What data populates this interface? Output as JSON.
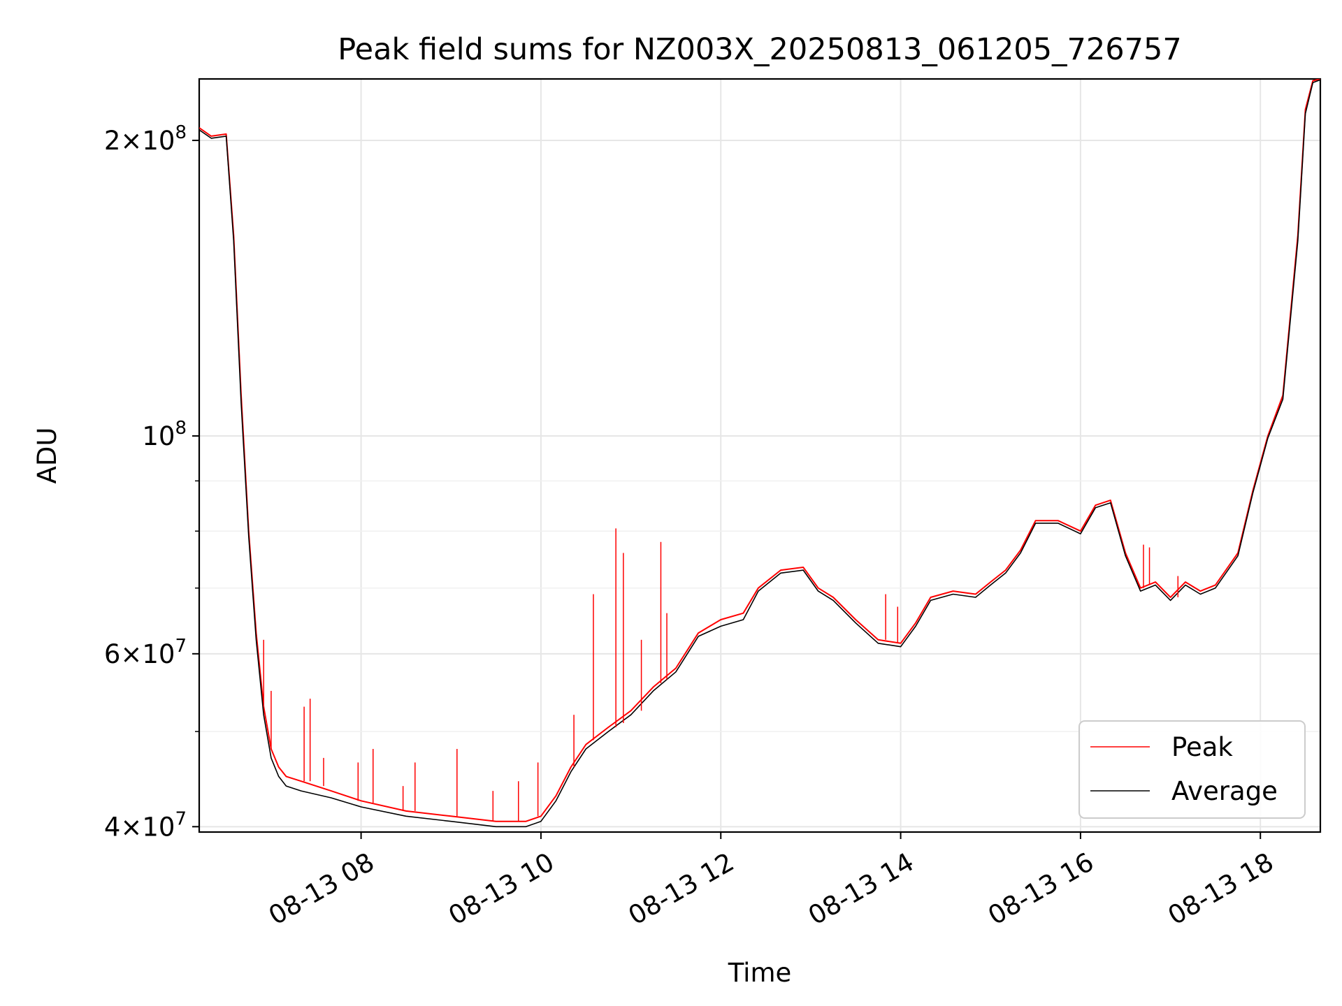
{
  "chart_data": {
    "type": "line",
    "title": "Peak field sums for NZ003X_20250813_061205_726757",
    "xlabel": "Time",
    "ylabel": "ADU",
    "yscale": "log",
    "grid": true,
    "legend_position": "lower-right",
    "xlim": [
      "2025-08-13 06:12",
      "2025-08-13 18:40"
    ],
    "ylim": [
      39500000,
      231000000
    ],
    "x_ticks": [
      {
        "value": "2025-08-13 08:00",
        "label": "08-13 08"
      },
      {
        "value": "2025-08-13 10:00",
        "label": "08-13 10"
      },
      {
        "value": "2025-08-13 12:00",
        "label": "08-13 12"
      },
      {
        "value": "2025-08-13 14:00",
        "label": "08-13 14"
      },
      {
        "value": "2025-08-13 16:00",
        "label": "08-13 16"
      },
      {
        "value": "2025-08-13 18:00",
        "label": "08-13 18"
      }
    ],
    "y_major_ticks": [
      {
        "value": 40000000,
        "base": "4",
        "exp": "7"
      },
      {
        "value": 60000000,
        "base": "6",
        "exp": "7"
      },
      {
        "value": 100000000,
        "base": "",
        "exp": "8"
      },
      {
        "value": 200000000,
        "base": "2",
        "exp": "8"
      }
    ],
    "y_minor_ticks": [
      50000000,
      70000000,
      80000000,
      90000000
    ],
    "series": [
      {
        "name": "Peak",
        "color": "#ff0000",
        "x": [
          "2025-08-13 06:12",
          "2025-08-13 06:20",
          "2025-08-13 06:30",
          "2025-08-13 06:35",
          "2025-08-13 06:40",
          "2025-08-13 06:45",
          "2025-08-13 06:50",
          "2025-08-13 06:55",
          "2025-08-13 07:00",
          "2025-08-13 07:05",
          "2025-08-13 07:10",
          "2025-08-13 07:20",
          "2025-08-13 07:40",
          "2025-08-13 08:00",
          "2025-08-13 08:30",
          "2025-08-13 09:00",
          "2025-08-13 09:30",
          "2025-08-13 09:50",
          "2025-08-13 10:00",
          "2025-08-13 10:10",
          "2025-08-13 10:20",
          "2025-08-13 10:30",
          "2025-08-13 10:45",
          "2025-08-13 11:00",
          "2025-08-13 11:15",
          "2025-08-13 11:30",
          "2025-08-13 11:45",
          "2025-08-13 12:00",
          "2025-08-13 12:15",
          "2025-08-13 12:25",
          "2025-08-13 12:40",
          "2025-08-13 12:55",
          "2025-08-13 13:05",
          "2025-08-13 13:15",
          "2025-08-13 13:30",
          "2025-08-13 13:45",
          "2025-08-13 14:00",
          "2025-08-13 14:10",
          "2025-08-13 14:20",
          "2025-08-13 14:35",
          "2025-08-13 14:50",
          "2025-08-13 15:00",
          "2025-08-13 15:10",
          "2025-08-13 15:20",
          "2025-08-13 15:30",
          "2025-08-13 15:45",
          "2025-08-13 16:00",
          "2025-08-13 16:10",
          "2025-08-13 16:20",
          "2025-08-13 16:30",
          "2025-08-13 16:40",
          "2025-08-13 16:50",
          "2025-08-13 17:00",
          "2025-08-13 17:10",
          "2025-08-13 17:20",
          "2025-08-13 17:30",
          "2025-08-13 17:45",
          "2025-08-13 17:55",
          "2025-08-13 18:05",
          "2025-08-13 18:15",
          "2025-08-13 18:25",
          "2025-08-13 18:30",
          "2025-08-13 18:35",
          "2025-08-13 18:40"
        ],
        "y": [
          206000000,
          202000000,
          203000000,
          160000000,
          110000000,
          80000000,
          63000000,
          53000000,
          48000000,
          46000000,
          45000000,
          44500000,
          43500000,
          42500000,
          41500000,
          41000000,
          40500000,
          40500000,
          41000000,
          43000000,
          46000000,
          48500000,
          50500000,
          52500000,
          55500000,
          58000000,
          63000000,
          65000000,
          66000000,
          70000000,
          73000000,
          73500000,
          70000000,
          68500000,
          65000000,
          62000000,
          61500000,
          64500000,
          68500000,
          69500000,
          69000000,
          71000000,
          73000000,
          76500000,
          82000000,
          82000000,
          80000000,
          85000000,
          86000000,
          76000000,
          70000000,
          71000000,
          68500000,
          71000000,
          69500000,
          70500000,
          76000000,
          88000000,
          100000000,
          110000000,
          160000000,
          215000000,
          230000000,
          231000000
        ]
      },
      {
        "name": "Average",
        "color": "#000000",
        "x": [
          "2025-08-13 06:12",
          "2025-08-13 06:20",
          "2025-08-13 06:30",
          "2025-08-13 06:35",
          "2025-08-13 06:40",
          "2025-08-13 06:45",
          "2025-08-13 06:50",
          "2025-08-13 06:55",
          "2025-08-13 07:00",
          "2025-08-13 07:05",
          "2025-08-13 07:10",
          "2025-08-13 07:20",
          "2025-08-13 07:40",
          "2025-08-13 08:00",
          "2025-08-13 08:30",
          "2025-08-13 09:00",
          "2025-08-13 09:30",
          "2025-08-13 09:50",
          "2025-08-13 10:00",
          "2025-08-13 10:10",
          "2025-08-13 10:20",
          "2025-08-13 10:30",
          "2025-08-13 10:45",
          "2025-08-13 11:00",
          "2025-08-13 11:15",
          "2025-08-13 11:30",
          "2025-08-13 11:45",
          "2025-08-13 12:00",
          "2025-08-13 12:15",
          "2025-08-13 12:25",
          "2025-08-13 12:40",
          "2025-08-13 12:55",
          "2025-08-13 13:05",
          "2025-08-13 13:15",
          "2025-08-13 13:30",
          "2025-08-13 13:45",
          "2025-08-13 14:00",
          "2025-08-13 14:10",
          "2025-08-13 14:20",
          "2025-08-13 14:35",
          "2025-08-13 14:50",
          "2025-08-13 15:00",
          "2025-08-13 15:10",
          "2025-08-13 15:20",
          "2025-08-13 15:30",
          "2025-08-13 15:45",
          "2025-08-13 16:00",
          "2025-08-13 16:10",
          "2025-08-13 16:20",
          "2025-08-13 16:30",
          "2025-08-13 16:40",
          "2025-08-13 16:50",
          "2025-08-13 17:00",
          "2025-08-13 17:10",
          "2025-08-13 17:20",
          "2025-08-13 17:30",
          "2025-08-13 17:45",
          "2025-08-13 17:55",
          "2025-08-13 18:05",
          "2025-08-13 18:15",
          "2025-08-13 18:25",
          "2025-08-13 18:30",
          "2025-08-13 18:35",
          "2025-08-13 18:40"
        ],
        "y": [
          205000000,
          201000000,
          202000000,
          158000000,
          108000000,
          79000000,
          62000000,
          52000000,
          47000000,
          45000000,
          44000000,
          43500000,
          42800000,
          41900000,
          41000000,
          40500000,
          40000000,
          40000000,
          40500000,
          42500000,
          45500000,
          48000000,
          50000000,
          52000000,
          55000000,
          57500000,
          62500000,
          64000000,
          65000000,
          69500000,
          72500000,
          73000000,
          69500000,
          68000000,
          64500000,
          61500000,
          61000000,
          64000000,
          68000000,
          69000000,
          68500000,
          70500000,
          72500000,
          76000000,
          81500000,
          81500000,
          79500000,
          84500000,
          85500000,
          75500000,
          69500000,
          70500000,
          68000000,
          70500000,
          69000000,
          70000000,
          75500000,
          87500000,
          99500000,
          109000000,
          158000000,
          213000000,
          229000000,
          230500000
        ]
      }
    ],
    "spikes": {
      "series": "Peak",
      "color": "#ff0000",
      "points": [
        {
          "x": "2025-08-13 06:55",
          "base": 53000000,
          "y": 62000000
        },
        {
          "x": "2025-08-13 07:00",
          "base": 48000000,
          "y": 55000000
        },
        {
          "x": "2025-08-13 07:22",
          "base": 44500000,
          "y": 53000000
        },
        {
          "x": "2025-08-13 07:26",
          "base": 44500000,
          "y": 54000000
        },
        {
          "x": "2025-08-13 07:35",
          "base": 44000000,
          "y": 47000000
        },
        {
          "x": "2025-08-13 07:58",
          "base": 42500000,
          "y": 46500000
        },
        {
          "x": "2025-08-13 08:08",
          "base": 42300000,
          "y": 48000000
        },
        {
          "x": "2025-08-13 08:28",
          "base": 41500000,
          "y": 44000000
        },
        {
          "x": "2025-08-13 08:36",
          "base": 41500000,
          "y": 46500000
        },
        {
          "x": "2025-08-13 09:04",
          "base": 41000000,
          "y": 48000000
        },
        {
          "x": "2025-08-13 09:28",
          "base": 40500000,
          "y": 43500000
        },
        {
          "x": "2025-08-13 09:45",
          "base": 40500000,
          "y": 44500000
        },
        {
          "x": "2025-08-13 09:58",
          "base": 41000000,
          "y": 46500000
        },
        {
          "x": "2025-08-13 10:22",
          "base": 46000000,
          "y": 52000000
        },
        {
          "x": "2025-08-13 10:35",
          "base": 49000000,
          "y": 69000000
        },
        {
          "x": "2025-08-13 10:50",
          "base": 50500000,
          "y": 80500000
        },
        {
          "x": "2025-08-13 10:55",
          "base": 51000000,
          "y": 76000000
        },
        {
          "x": "2025-08-13 11:07",
          "base": 52500000,
          "y": 62000000
        },
        {
          "x": "2025-08-13 11:20",
          "base": 56000000,
          "y": 78000000
        },
        {
          "x": "2025-08-13 11:24",
          "base": 56500000,
          "y": 66000000
        },
        {
          "x": "2025-08-13 13:50",
          "base": 62000000,
          "y": 69000000
        },
        {
          "x": "2025-08-13 13:58",
          "base": 61500000,
          "y": 67000000
        },
        {
          "x": "2025-08-13 16:42",
          "base": 70000000,
          "y": 77500000
        },
        {
          "x": "2025-08-13 16:46",
          "base": 70500000,
          "y": 77000000
        },
        {
          "x": "2025-08-13 17:05",
          "base": 68500000,
          "y": 72000000
        }
      ]
    }
  }
}
